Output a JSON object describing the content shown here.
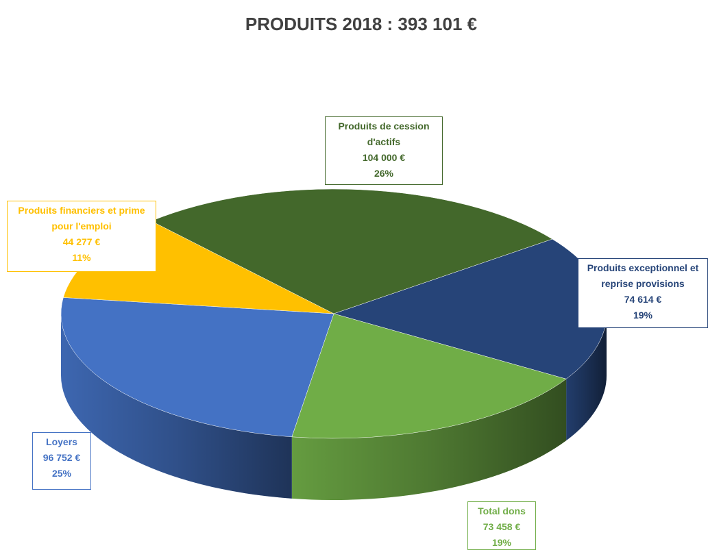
{
  "chart_data": {
    "type": "pie3d",
    "title": "PRODUITS 2018 : 393 101 €",
    "categories": [
      "Produits de cession d'actifs",
      "Produits exceptionnel et reprise provisions",
      "Total dons",
      "Loyers",
      "Produits financiers et prime pour l'emploi"
    ],
    "values": [
      104000,
      74614,
      73458,
      96752,
      44277
    ],
    "value_labels": [
      "104 000 €",
      "74 614 €",
      "73 458 €",
      "96 752 €",
      "44 277 €"
    ],
    "percent_labels": [
      "26%",
      "19%",
      "19%",
      "25%",
      "11%"
    ],
    "colors": [
      "#43682b",
      "#264478",
      "#70ad47",
      "#4472c4",
      "#ffc000"
    ]
  }
}
